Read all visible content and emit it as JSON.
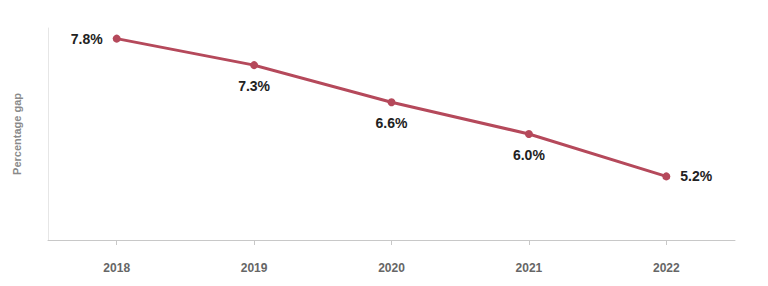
{
  "chart_data": {
    "type": "line",
    "y_label": "Percentage gap",
    "categories": [
      "2018",
      "2019",
      "2020",
      "2021",
      "2022"
    ],
    "values": [
      7.8,
      7.3,
      6.6,
      6.0,
      5.2
    ],
    "value_labels": [
      "7.8%",
      "7.3%",
      "6.6%",
      "6.0%",
      "5.2%"
    ],
    "color": "#b5495b",
    "ylim": [
      4,
      8
    ],
    "grid": false,
    "data_labels": true,
    "tick_labels": "x",
    "marker": "circle"
  }
}
